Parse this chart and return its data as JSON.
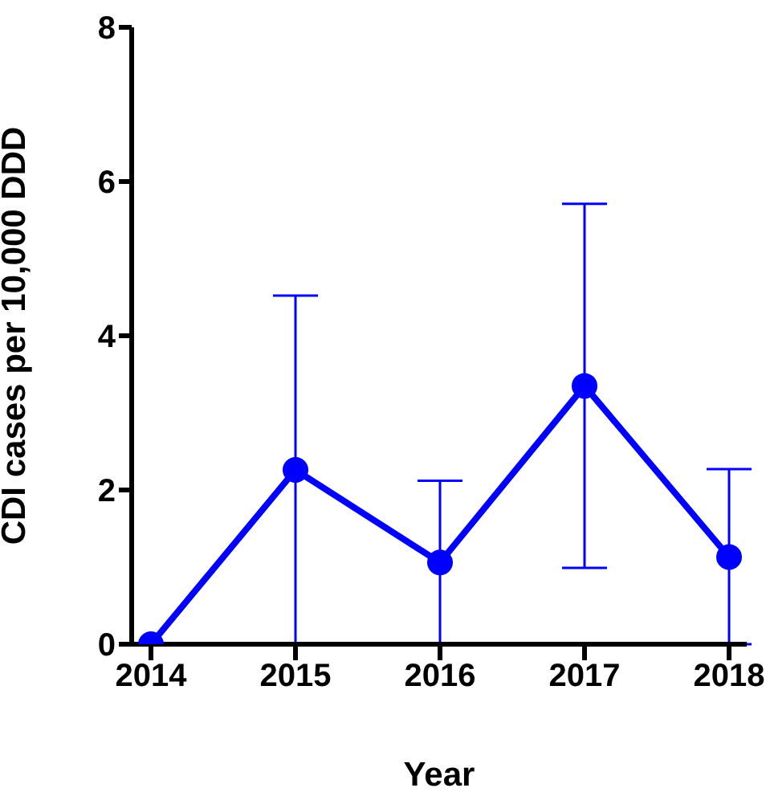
{
  "chart_data": {
    "type": "line",
    "xlabel": "Year",
    "ylabel": "CDI cases per 10,000 DDD",
    "categories": [
      "2014",
      "2015",
      "2016",
      "2017",
      "2018"
    ],
    "series": [
      {
        "color": "#0000ff",
        "values": [
          0,
          2.26,
          1.06,
          3.35,
          1.13
        ],
        "errors": [
          null,
          [
            0,
            4.52
          ],
          [
            0,
            2.12
          ],
          [
            0.99,
            5.71
          ],
          [
            0,
            2.27
          ]
        ]
      }
    ],
    "ylim": [
      0,
      8
    ],
    "yticks": [
      0,
      2,
      4,
      6,
      8
    ],
    "grid": false,
    "legend": false,
    "marker": "circle",
    "line_style": "solid"
  }
}
